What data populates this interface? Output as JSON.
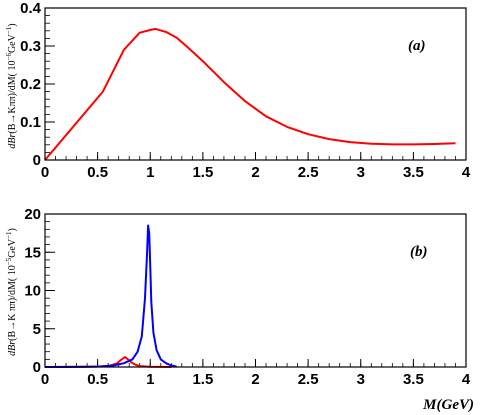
{
  "chart_data": [
    {
      "type": "line",
      "panel_label": "(a)",
      "ylabel": {
        "pre": "dBr",
        "mid": "(B→Kππ)/dM( 10",
        "exp": "−6",
        "unit": "GeV",
        "unit_exp": "−1",
        "close": ")"
      },
      "xlim": [
        0,
        4
      ],
      "ylim": [
        0,
        0.4
      ],
      "xticks": [
        "0",
        "0.5",
        "1",
        "1.5",
        "2",
        "2.5",
        "3",
        "3.5",
        "4"
      ],
      "yticks": [
        "0",
        "0.1",
        "0.2",
        "0.3",
        "0.4"
      ],
      "colors": {
        "curve": "#ff0000"
      },
      "series": [
        {
          "color": "#ff0000",
          "points": [
            [
              0.0,
              0.0
            ],
            [
              0.55,
              0.18
            ],
            [
              0.75,
              0.29
            ],
            [
              0.9,
              0.335
            ],
            [
              1.0,
              0.342
            ],
            [
              1.05,
              0.345
            ],
            [
              1.15,
              0.337
            ],
            [
              1.25,
              0.322
            ],
            [
              1.35,
              0.298
            ],
            [
              1.5,
              0.26
            ],
            [
              1.7,
              0.205
            ],
            [
              1.9,
              0.155
            ],
            [
              2.1,
              0.115
            ],
            [
              2.3,
              0.087
            ],
            [
              2.5,
              0.068
            ],
            [
              2.7,
              0.055
            ],
            [
              2.9,
              0.047
            ],
            [
              3.1,
              0.043
            ],
            [
              3.3,
              0.041
            ],
            [
              3.5,
              0.041
            ],
            [
              3.7,
              0.042
            ],
            [
              3.9,
              0.044
            ]
          ]
        }
      ]
    },
    {
      "type": "line",
      "panel_label": "(b)",
      "xlabel": "M(GeV)",
      "ylabel": {
        "pre": "dBr",
        "mid": "(B→K ππ)/dM( 10",
        "exp": "−5",
        "unit": "GeV",
        "unit_exp": "−1",
        "close": ")"
      },
      "xlim": [
        0,
        4
      ],
      "ylim": [
        0,
        20
      ],
      "xticks": [
        "0",
        "0.5",
        "1",
        "1.5",
        "2",
        "2.5",
        "3",
        "3.5",
        "4"
      ],
      "yticks": [
        "0",
        "5",
        "10",
        "15",
        "20"
      ],
      "colors": {
        "rho": "#ff0000",
        "f0": "#0000ff"
      },
      "series": [
        {
          "color": "#ff0000",
          "points": [
            [
              0.0,
              0.0
            ],
            [
              0.4,
              0.02
            ],
            [
              0.55,
              0.08
            ],
            [
              0.62,
              0.2
            ],
            [
              0.68,
              0.45
            ],
            [
              0.72,
              0.9
            ],
            [
              0.76,
              1.3
            ],
            [
              0.79,
              1.0
            ],
            [
              0.82,
              0.6
            ],
            [
              0.86,
              0.3
            ],
            [
              0.9,
              0.12
            ],
            [
              1.0,
              0.03
            ],
            [
              1.2,
              0.0
            ]
          ]
        },
        {
          "color": "#0000ff",
          "points": [
            [
              0.0,
              0.0
            ],
            [
              0.3,
              0.01
            ],
            [
              0.5,
              0.05
            ],
            [
              0.65,
              0.2
            ],
            [
              0.75,
              0.5
            ],
            [
              0.83,
              1.0
            ],
            [
              0.88,
              2.0
            ],
            [
              0.92,
              4.0
            ],
            [
              0.95,
              9.0
            ],
            [
              0.97,
              15.0
            ],
            [
              0.98,
              18.5
            ],
            [
              0.99,
              17.5
            ],
            [
              1.0,
              13.0
            ],
            [
              1.01,
              8.5
            ],
            [
              1.03,
              4.5
            ],
            [
              1.06,
              2.2
            ],
            [
              1.1,
              1.0
            ],
            [
              1.15,
              0.5
            ],
            [
              1.2,
              0.2
            ],
            [
              1.25,
              0.05
            ]
          ]
        }
      ]
    }
  ]
}
